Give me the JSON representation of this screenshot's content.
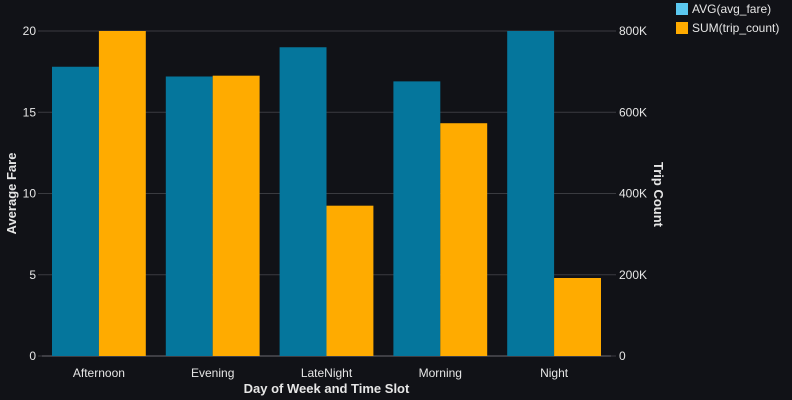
{
  "chart_data": {
    "type": "bar",
    "categories": [
      "Afternoon",
      "Evening",
      "LateNight",
      "Morning",
      "Night"
    ],
    "series": [
      {
        "name": "AVG(avg_fare)",
        "axis": "left",
        "color": "#05769c",
        "values": [
          17.8,
          17.2,
          19.0,
          16.9,
          20.0
        ]
      },
      {
        "name": "SUM(trip_count)",
        "axis": "right",
        "color": "#ffab00",
        "values": [
          800000,
          690000,
          370000,
          573000,
          192000
        ]
      }
    ],
    "xlabel": "Day of Week and Time Slot",
    "ylabel": "Average Fare",
    "y2label": "Trip Count",
    "ylim": [
      0,
      20
    ],
    "y2lim": [
      0,
      800000
    ],
    "yticks": [
      0,
      5,
      10,
      15,
      20
    ],
    "y2ticks": [
      0,
      200000,
      400000,
      600000,
      800000
    ],
    "y2ticklabels": [
      "0",
      "200K",
      "400K",
      "600K",
      "800K"
    ],
    "grid": true,
    "legend_position": "top-right",
    "legend_swatch_colors": [
      "#5bc8f0",
      "#ffab00"
    ],
    "background": "#111217",
    "grid_color": "#3a3b40"
  }
}
